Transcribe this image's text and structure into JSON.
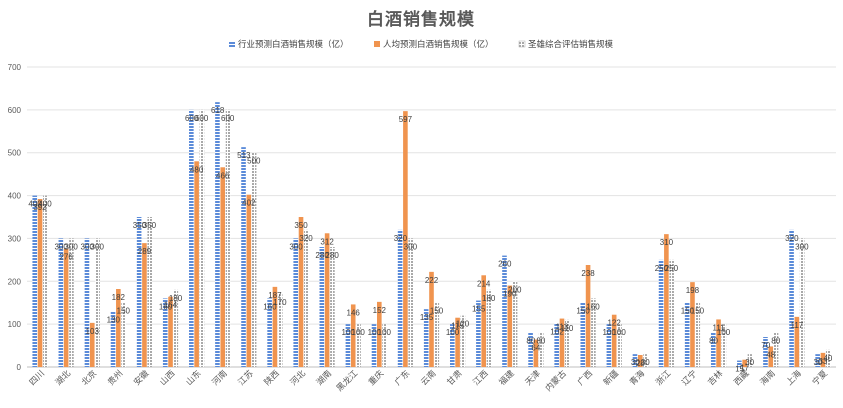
{
  "chart_data": {
    "type": "bar",
    "title": "白酒销售规模",
    "ylim": [
      0,
      700
    ],
    "yticks": [
      0,
      100,
      200,
      300,
      400,
      500,
      600,
      700
    ],
    "grid": true,
    "legend_position": "top",
    "categories": [
      "四川",
      "湖北",
      "北京",
      "贵州",
      "安徽",
      "山西",
      "山东",
      "河南",
      "江苏",
      "陕西",
      "河北",
      "湖南",
      "黑龙江",
      "重庆",
      "广东",
      "云南",
      "甘肃",
      "江西",
      "福建",
      "天津",
      "内蒙古",
      "广西",
      "新疆",
      "青海",
      "浙江",
      "辽宁",
      "吉林",
      "西藏",
      "海南",
      "上海",
      "宁夏"
    ],
    "series": [
      {
        "name": "行业预测白酒销售规模（亿）",
        "color": "#5b8bd9",
        "pattern": "hstripe",
        "values": [
          400,
          300,
          300,
          130,
          350,
          160,
          600,
          618,
          513,
          160,
          300,
          280,
          100,
          100,
          320,
          135,
          100,
          155,
          260,
          80,
          102,
          150,
          100,
          30,
          250,
          150,
          80,
          15,
          70,
          320,
          30
        ]
      },
      {
        "name": "人均预测白酒销售规模（亿）",
        "color": "#f0944f",
        "pattern": "solid",
        "values": [
          392,
          276,
          103,
          182,
          289,
          164,
          480,
          466,
          402,
          187,
          350,
          312,
          146,
          152,
          597,
          222,
          115,
          214,
          190,
          64,
          113,
          238,
          122,
          28,
          310,
          198,
          111,
          17,
          48,
          117,
          33
        ]
      },
      {
        "name": "圣雄综合评估销售规模",
        "color": "#b7b7b7",
        "pattern": "dots",
        "values": [
          400,
          300,
          300,
          150,
          350,
          180,
          600,
          600,
          500,
          170,
          320,
          280,
          100,
          100,
          300,
          150,
          120,
          180,
          200,
          80,
          110,
          160,
          100,
          30,
          250,
          150,
          100,
          30,
          80,
          300,
          40
        ]
      }
    ]
  }
}
